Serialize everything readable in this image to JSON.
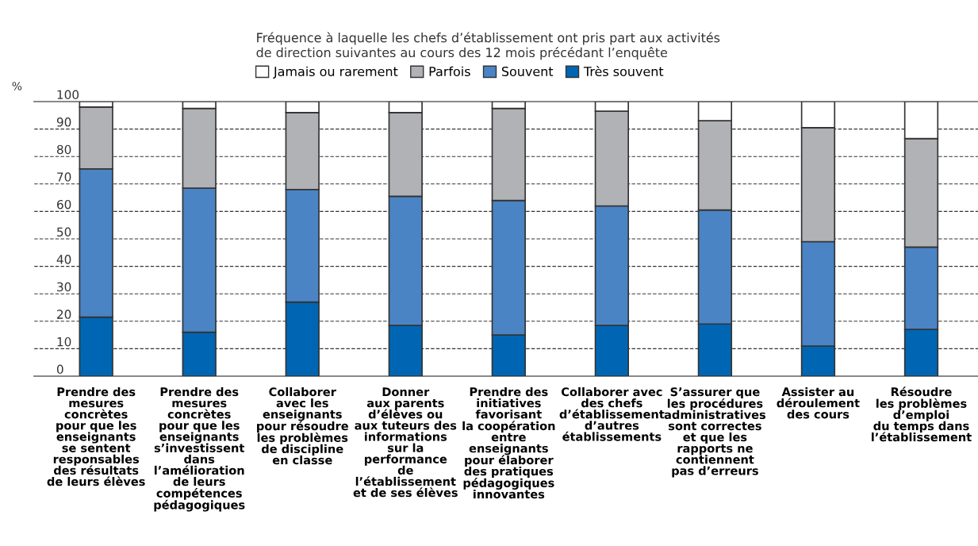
{
  "chart_data": {
    "type": "bar",
    "stacked": true,
    "ylabel": "%",
    "legend_title": "Fréquence à laquelle les chefs d’établissement ont pris part aux activités\nde direction suivantes au cours des 12 mois précédant l’enquête",
    "categories": [
      "Prendre des\nmesures\nconcrètes\npour que les\nenseignants\nse sentent\nresponsables\ndes résultats\nde leurs élèves",
      "Prendre des\nmesures\nconcrètes\npour que les\nenseignants\ns’investissent\ndans\nl’amélioration\nde leurs\ncompétences\npédagogiques",
      "Collaborer\navec les\nenseignants\npour résoudre\nles problèmes\nde discipline\nen classe",
      "Donner\naux parents\nd’élèves ou\naux tuteurs des\ninformations\nsur la\nperformance\nde\nl’établissement\net de ses élèves",
      "Prendre des\ninitiatives\nfavorisant\nla coopération\nentre\nenseignants\npour élaborer\ndes pratiques\npédagogiques\ninnovantes",
      "Collaborer avec\ndes chefs\nd’établissement\nd’autres\nétablissements",
      "S’assurer que\nles procédures\nadministratives\nsont correctes\net que les\nrapports ne\ncontiennent\npas d’erreurs",
      "Assister au\ndéroulement\ndes cours",
      "Résoudre\nles problèmes\nd’emploi\ndu temps dans\nl’établissement"
    ],
    "series": [
      {
        "name": "Très souvent",
        "color": "#0066b3",
        "values": [
          21.5,
          16,
          27,
          18.5,
          15,
          18.5,
          19,
          11,
          17
        ]
      },
      {
        "name": "Souvent",
        "color": "#4a84c4",
        "values": [
          54,
          52.5,
          41,
          47,
          49,
          43.5,
          41.5,
          38,
          30
        ]
      },
      {
        "name": "Parfois",
        "color": "#b1b2b6",
        "values": [
          22.5,
          29,
          28,
          30.5,
          33.5,
          34.5,
          32.5,
          41.5,
          39.5
        ]
      },
      {
        "name": "Jamais ou rarement",
        "color": "#ffffff",
        "values": [
          2,
          2.5,
          4,
          4,
          2.5,
          3.5,
          7,
          9.5,
          13.5
        ]
      }
    ],
    "ylim": [
      0,
      100
    ],
    "yticks": [
      0,
      10,
      20,
      30,
      40,
      50,
      60,
      70,
      80,
      90,
      100
    ],
    "grid": "y",
    "legend": "top"
  }
}
